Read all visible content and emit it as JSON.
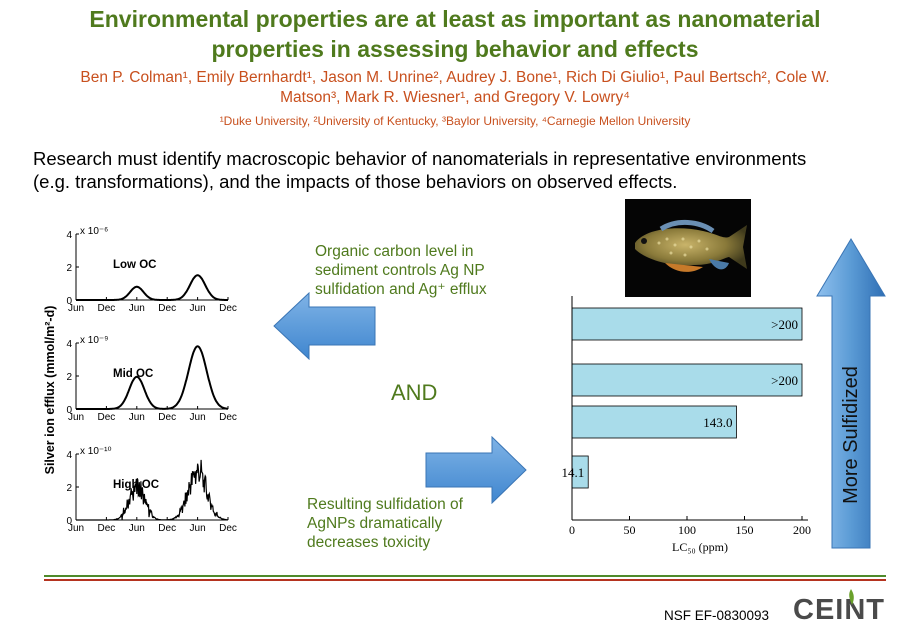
{
  "header": {
    "title_line1": "Environmental properties are at least as important as nanomaterial",
    "title_line2": "properties in assessing behavior and effects",
    "authors_line1": "Ben P. Colman¹, Emily Bernhardt¹, Jason M. Unrine², Audrey J. Bone¹, Rich Di Giulio¹, Paul Bertsch², Cole W.",
    "authors_line2": "Matson³, Mark R. Wiesner¹, and Gregory V. Lowry⁴",
    "affiliations": "¹Duke University, ²University of Kentucky, ³Baylor University, ⁴Carnegie Mellon University"
  },
  "summary": {
    "line1": "Research must identify macroscopic behavior of nanomaterials in representative environments",
    "line2": "(e.g. transformations), and the impacts of those behaviors on observed effects."
  },
  "notes": {
    "top_line1": "Organic carbon level in",
    "top_line2": "sediment controls Ag NP",
    "top_line3": "sulfidation and Ag⁺ efflux",
    "and": "AND",
    "bottom_line1": "Resulting sulfidation of",
    "bottom_line2": "AgNPs dramatically",
    "bottom_line3": "decreases toxicity"
  },
  "arrow_label": "More Sulfidized",
  "footer": {
    "grant": "NSF EF-0830093",
    "logo": "CEINT"
  },
  "colors": {
    "title_green": "#4f7a1d",
    "author_orange": "#c8501e",
    "arrow_blue": "#5b9bd5",
    "bar_fill": "#a9dcea",
    "divider_green": "#4f8a2a",
    "divider_red": "#b5331f"
  },
  "chart_data": [
    {
      "type": "line",
      "ylabel": "Silver ion efflux   (mmol/m²-d)",
      "x_ticks": [
        "Jun",
        "Dec",
        "Jun",
        "Dec",
        "Jun",
        "Dec"
      ],
      "panels": [
        {
          "label": "Low OC",
          "multiplier": "x 10⁻⁶",
          "y_ticks": [
            "0",
            "2",
            "4"
          ],
          "ylim": [
            0,
            4
          ],
          "peaks": [
            {
              "x": 2.0,
              "y": 0.8,
              "width": 0.22
            },
            {
              "x": 4.0,
              "y": 1.5,
              "width": 0.25
            }
          ],
          "noisy": false
        },
        {
          "label": "Mid OC",
          "multiplier": "x 10⁻⁹",
          "y_ticks": [
            "0",
            "2",
            "4"
          ],
          "ylim": [
            0,
            4
          ],
          "peaks": [
            {
              "x": 2.0,
              "y": 1.95,
              "width": 0.25
            },
            {
              "x": 4.0,
              "y": 3.8,
              "width": 0.3
            }
          ],
          "noisy": false
        },
        {
          "label": "High OC",
          "multiplier": "x 10⁻¹⁰",
          "y_ticks": [
            "0",
            "2",
            "4"
          ],
          "ylim": [
            0,
            4
          ],
          "peaks": [
            {
              "x": 2.0,
              "y": 2.0,
              "width": 0.25
            },
            {
              "x": 4.0,
              "y": 2.9,
              "width": 0.3
            }
          ],
          "noisy": true
        }
      ]
    },
    {
      "type": "bar",
      "orientation": "horizontal",
      "values": [
        200,
        200,
        143.0,
        14.1
      ],
      "value_labels": [
        ">200",
        ">200",
        "143.0",
        "14.1"
      ],
      "xlim": [
        0,
        200
      ],
      "x_ticks": [
        "0",
        "50",
        "100",
        "150",
        "200"
      ],
      "xlabel": "LC₅₀ (ppm)"
    }
  ]
}
